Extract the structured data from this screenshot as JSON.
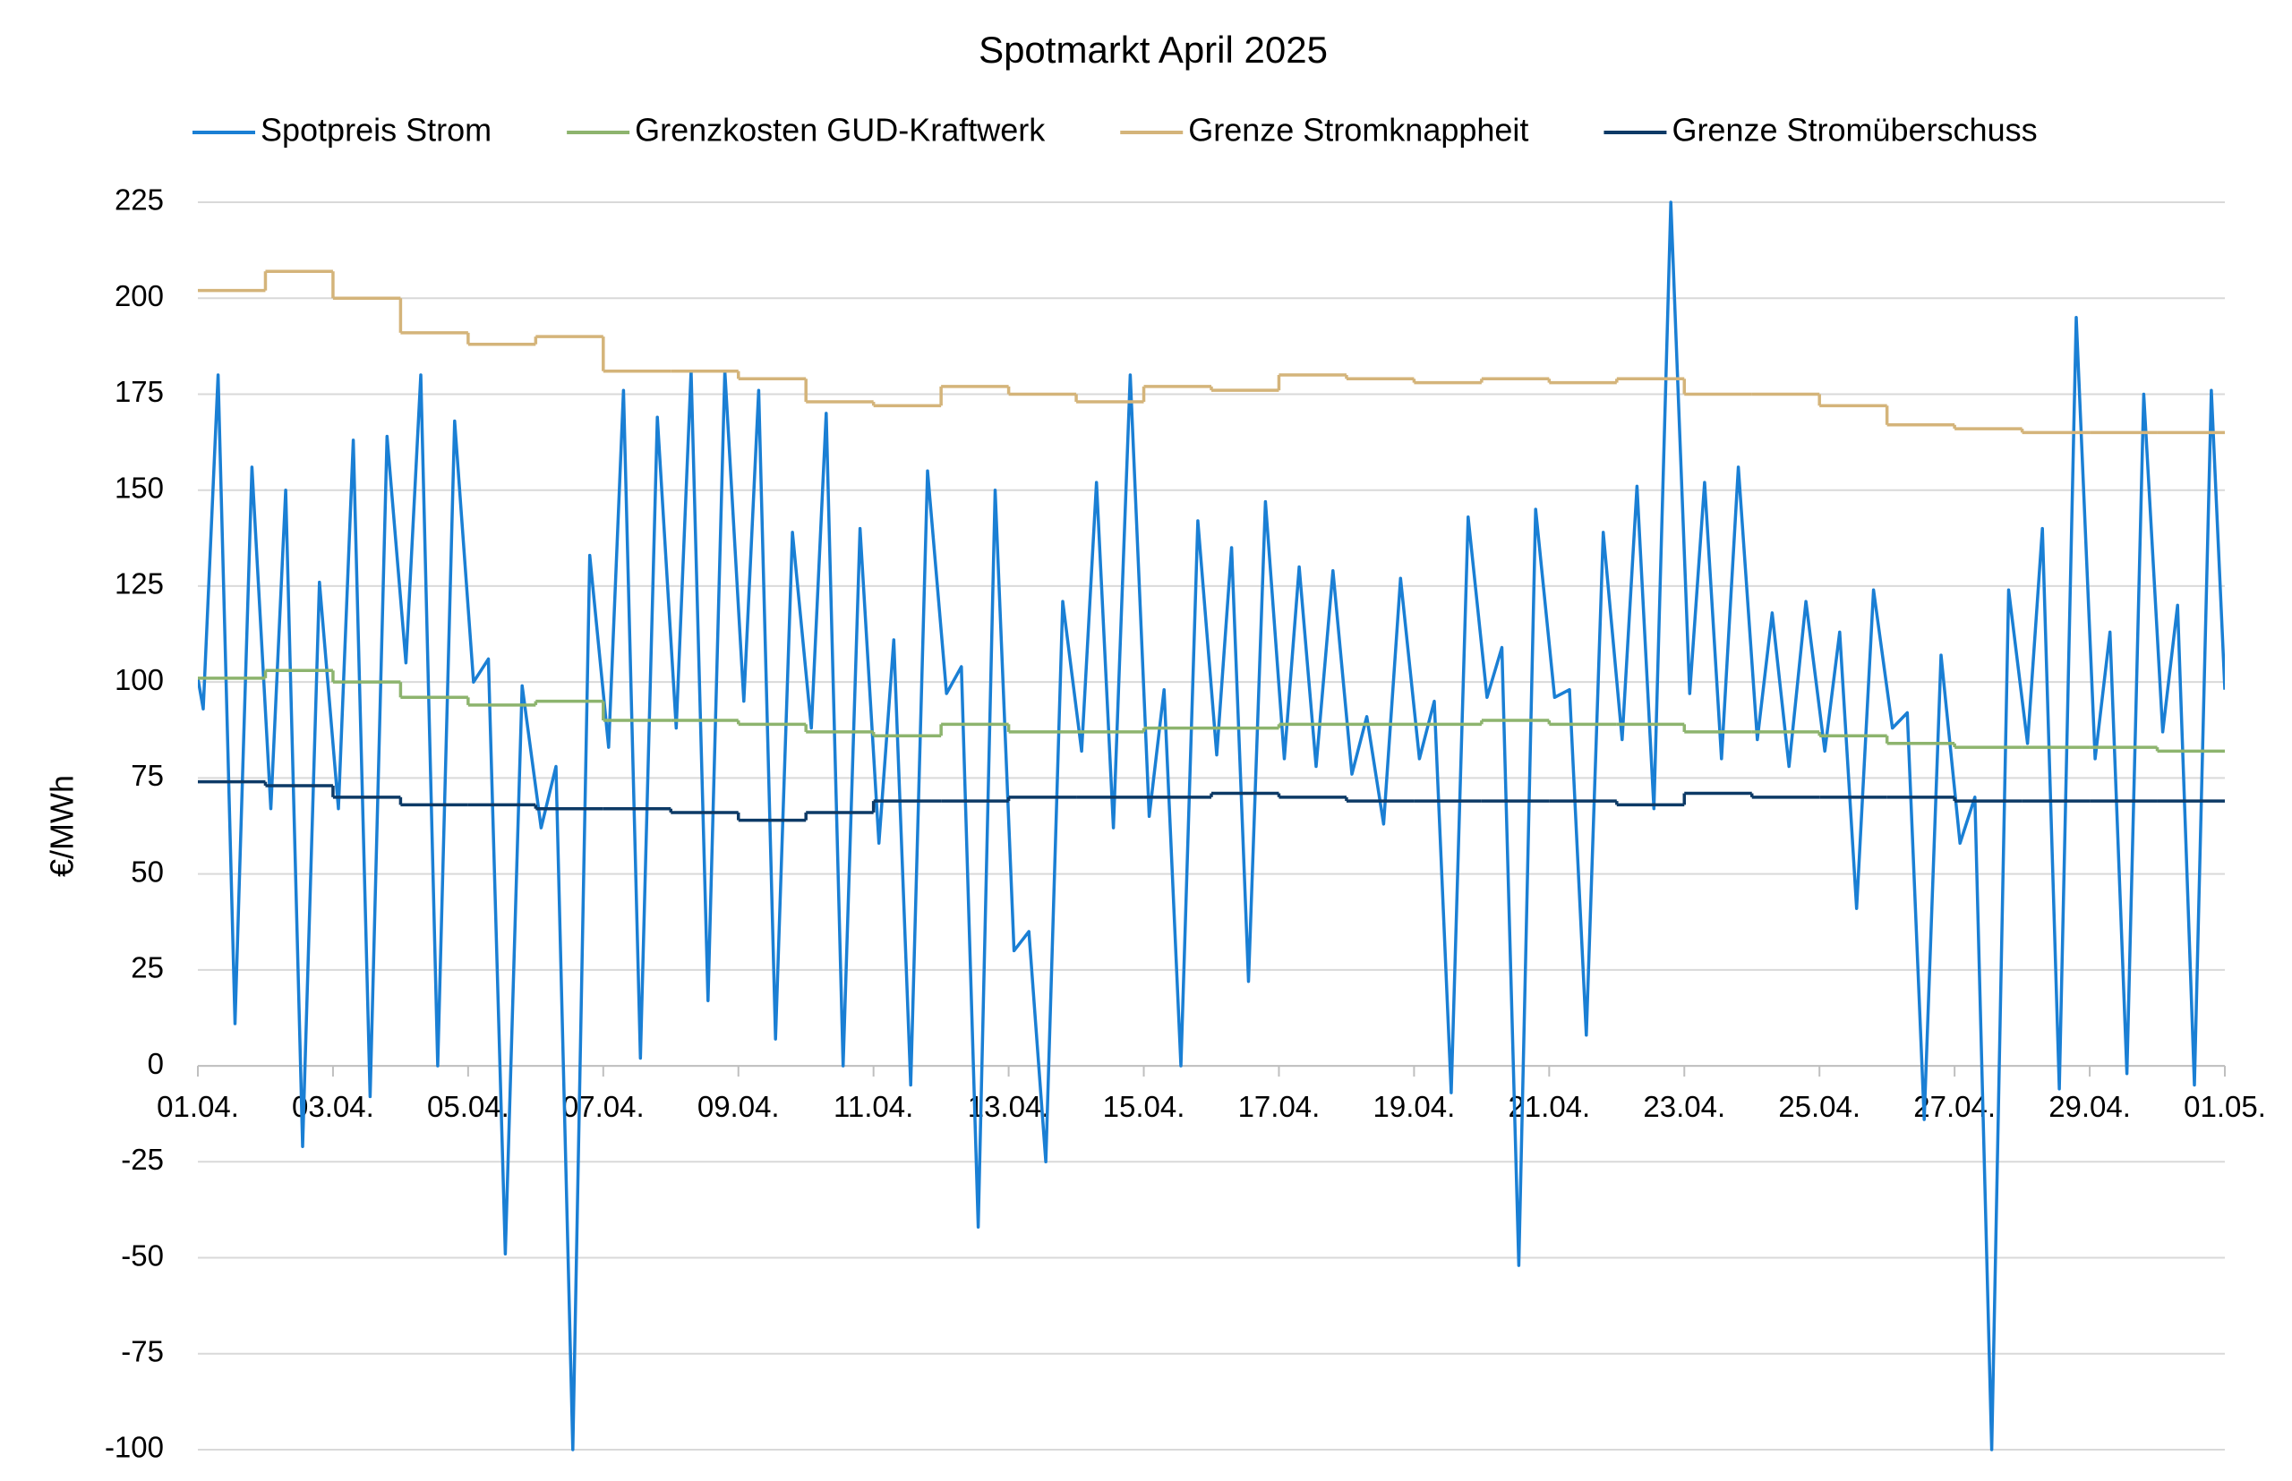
{
  "chart_data": {
    "type": "line",
    "title": "Spotmarkt April 2025",
    "y_label": "€/MWh",
    "xlim": [
      0,
      30
    ],
    "ylim": [
      -100,
      225
    ],
    "yticks": [
      -100,
      -75,
      -50,
      -25,
      0,
      25,
      50,
      75,
      100,
      125,
      150,
      175,
      200,
      225
    ],
    "xticks": [
      {
        "value": 0,
        "label": "01.04."
      },
      {
        "value": 2,
        "label": "03.04."
      },
      {
        "value": 4,
        "label": "05.04."
      },
      {
        "value": 6,
        "label": "07.04."
      },
      {
        "value": 8,
        "label": "09.04."
      },
      {
        "value": 10,
        "label": "11.04."
      },
      {
        "value": 12,
        "label": "13.04."
      },
      {
        "value": 14,
        "label": "15.04."
      },
      {
        "value": 16,
        "label": "17.04."
      },
      {
        "value": 18,
        "label": "19.04."
      },
      {
        "value": 20,
        "label": "21.04."
      },
      {
        "value": 22,
        "label": "23.04."
      },
      {
        "value": 24,
        "label": "25.04."
      },
      {
        "value": 26,
        "label": "27.04."
      },
      {
        "value": 28,
        "label": "29.04."
      },
      {
        "value": 30,
        "label": "01.05."
      }
    ],
    "grid": true,
    "legend": "top",
    "series": [
      {
        "name": "Spotpreis Strom",
        "color": "#1a7fd4",
        "step": false,
        "x": [
          0,
          0.08,
          0.3,
          0.55,
          0.8,
          1.08,
          1.3,
          1.55,
          1.8,
          2.08,
          2.3,
          2.55,
          2.8,
          3.08,
          3.3,
          3.55,
          3.8,
          4.08,
          4.3,
          4.55,
          4.8,
          5.08,
          5.3,
          5.55,
          5.8,
          6.08,
          6.3,
          6.55,
          6.8,
          7.08,
          7.3,
          7.55,
          7.8,
          8.08,
          8.3,
          8.55,
          8.8,
          9.08,
          9.3,
          9.55,
          9.8,
          10.08,
          10.3,
          10.55,
          10.8,
          11.08,
          11.3,
          11.55,
          11.8,
          12.08,
          12.3,
          12.55,
          12.8,
          13.08,
          13.3,
          13.55,
          13.8,
          14.08,
          14.3,
          14.55,
          14.8,
          15.08,
          15.3,
          15.55,
          15.8,
          16.08,
          16.3,
          16.55,
          16.8,
          17.08,
          17.3,
          17.55,
          17.8,
          18.08,
          18.3,
          18.55,
          18.8,
          19.08,
          19.3,
          19.55,
          19.8,
          20.08,
          20.3,
          20.55,
          20.8,
          21.08,
          21.3,
          21.55,
          21.8,
          22.08,
          22.3,
          22.55,
          22.8,
          23.08,
          23.3,
          23.55,
          23.8,
          24.08,
          24.3,
          24.55,
          24.8,
          25.08,
          25.3,
          25.55,
          25.8,
          26.08,
          26.3,
          26.55,
          26.8,
          27.08,
          27.3,
          27.55,
          27.8,
          28.08,
          28.3,
          28.55,
          28.8,
          29.08,
          29.3,
          29.55,
          29.8,
          30
        ],
        "values": [
          101,
          93,
          180,
          11,
          156,
          67,
          150,
          -21,
          126,
          67,
          163,
          -8,
          164,
          105,
          180,
          0,
          168,
          100,
          106,
          -49,
          99,
          62,
          78,
          -100,
          133,
          83,
          176,
          2,
          169,
          88,
          181,
          17,
          181,
          95,
          176,
          7,
          139,
          88,
          170,
          0,
          140,
          58,
          111,
          -5,
          155,
          97,
          104,
          -42,
          150,
          30,
          35,
          -25,
          121,
          82,
          152,
          62,
          180,
          65,
          98,
          0,
          142,
          81,
          135,
          22,
          147,
          80,
          130,
          78,
          129,
          76,
          91,
          63,
          127,
          80,
          95,
          -7,
          143,
          96,
          109,
          -52,
          145,
          96,
          98,
          8,
          139,
          85,
          151,
          67,
          225,
          97,
          152,
          80,
          156,
          85,
          118,
          78,
          121,
          82,
          113,
          41,
          124,
          88,
          92,
          -14,
          107,
          58,
          70,
          -100,
          124,
          84,
          140,
          -6,
          195,
          80,
          113,
          -2,
          175,
          87,
          120,
          -5,
          176,
          98
        ]
      },
      {
        "name": "Grenzkosten GUD-Kraftwerk",
        "color": "#8db46e",
        "step": true,
        "x": [
          0,
          1,
          2,
          3,
          4,
          5,
          6,
          7,
          8,
          9,
          10,
          11,
          12,
          13,
          14,
          15,
          16,
          17,
          18,
          19,
          20,
          21,
          22,
          23,
          24,
          25,
          26,
          27,
          28,
          29
        ],
        "values": [
          101,
          103,
          100,
          96,
          94,
          95,
          90,
          90,
          89,
          87,
          86,
          89,
          87,
          87,
          88,
          88,
          89,
          89,
          89,
          90,
          89,
          89,
          87,
          87,
          86,
          84,
          83,
          83,
          83,
          82
        ]
      },
      {
        "name": "Grenze Stromknappheit",
        "color": "#d4b47a",
        "step": true,
        "x": [
          0,
          1,
          2,
          3,
          4,
          5,
          6,
          7,
          8,
          9,
          10,
          11,
          12,
          13,
          14,
          15,
          16,
          17,
          18,
          19,
          20,
          21,
          22,
          23,
          24,
          25,
          26,
          27,
          28,
          29
        ],
        "values": [
          202,
          207,
          200,
          191,
          188,
          190,
          181,
          181,
          179,
          173,
          172,
          177,
          175,
          173,
          177,
          176,
          180,
          179,
          178,
          179,
          178,
          179,
          175,
          175,
          172,
          167,
          166,
          165,
          165,
          165
        ]
      },
      {
        "name": "Grenze Stromüberschuss",
        "color": "#0d3a66",
        "step": true,
        "x": [
          0,
          1,
          2,
          3,
          4,
          5,
          6,
          7,
          8,
          9,
          10,
          11,
          12,
          13,
          14,
          15,
          16,
          17,
          18,
          19,
          20,
          21,
          22,
          23,
          24,
          25,
          26,
          27,
          28,
          29
        ],
        "values": [
          74,
          73,
          70,
          68,
          68,
          67,
          67,
          66,
          64,
          66,
          69,
          69,
          70,
          70,
          70,
          71,
          70,
          69,
          69,
          69,
          69,
          68,
          71,
          70,
          70,
          70,
          69,
          69,
          69,
          69
        ]
      }
    ]
  }
}
